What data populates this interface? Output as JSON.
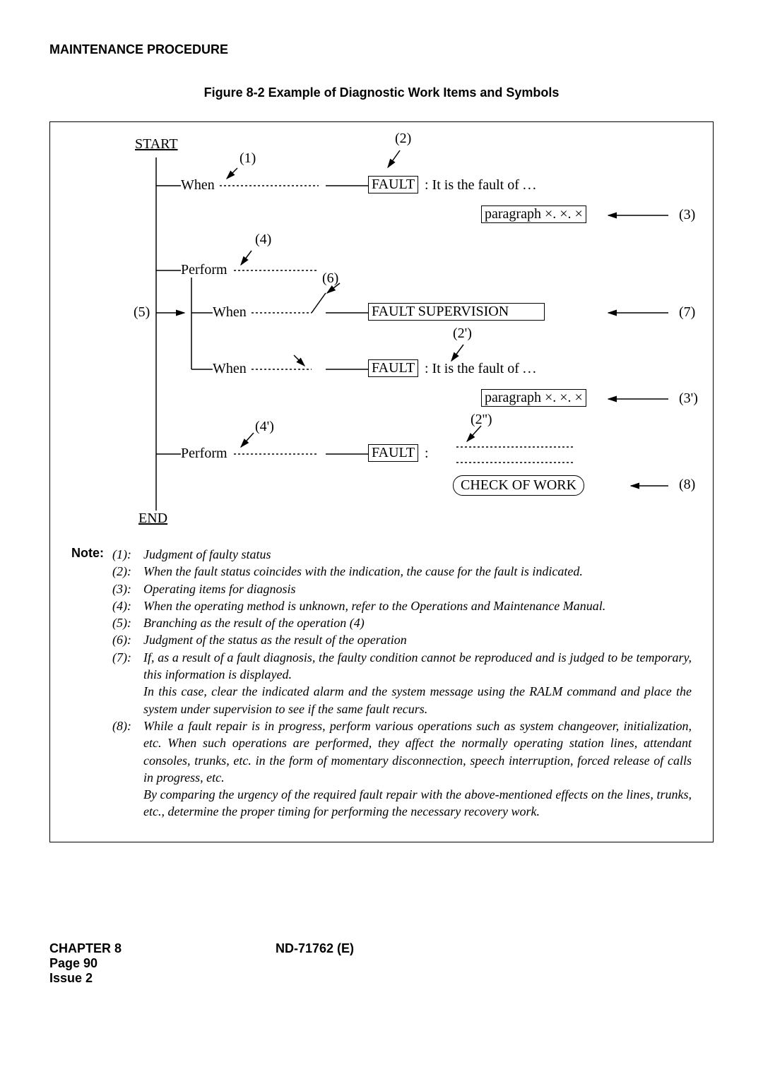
{
  "section_header": "MAINTENANCE PROCEDURE",
  "figure_title": "Figure 8-2   Example of Diagnostic Work Items and Symbols",
  "diagram": {
    "start": "START",
    "end": "END",
    "when": "When",
    "perform": "Perform",
    "fault": "FAULT",
    "fault_supervision": "FAULT SUPERVISION",
    "it_is_fault_of": ": It is the fault of",
    "paragraph": "paragraph ×. ×. ×",
    "check_of_work": "CHECK OF WORK",
    "colon": ":",
    "annot": {
      "a1": "(1)",
      "a2": "(2)",
      "a2p": "(2')",
      "a2pp": "(2'')",
      "a3": "(3)",
      "a3p": "(3')",
      "a4": "(4)",
      "a4p": "(4')",
      "a5": "(5)",
      "a6": "(6)",
      "a7": "(7)",
      "a8": "(8)"
    }
  },
  "note_label": "Note:",
  "notes": [
    {
      "num": "(1):",
      "txt": "Judgment of faulty status"
    },
    {
      "num": "(2):",
      "txt": "When the fault status coincides with the indication, the cause for the fault is indicated."
    },
    {
      "num": "(3):",
      "txt": "Operating items for diagnosis"
    },
    {
      "num": "(4):",
      "txt": "When the operating method is unknown, refer to the Operations and Maintenance Manual."
    },
    {
      "num": "(5):",
      "txt": "Branching as the result of the operation (4)"
    },
    {
      "num": "(6):",
      "txt": "Judgment of the status as the result of the operation"
    },
    {
      "num": "(7):",
      "txt": "If, as a result of a fault diagnosis, the faulty condition cannot be reproduced and is judged to be temporary, this information is displayed.\nIn this case, clear the indicated alarm and the system message using the RALM command and place the system under supervision to see if the same fault recurs."
    },
    {
      "num": "(8):",
      "txt": "While a fault repair is in progress, perform various operations such as system changeover, initialization, etc. When such operations are performed, they affect the normally operating station lines, attendant consoles, trunks, etc. in the form of momentary disconnection, speech interruption, forced release of calls in progress, etc.\nBy comparing the urgency of the required fault repair with the above-mentioned effects on the lines, trunks, etc., determine the proper timing for performing the necessary recovery work."
    }
  ],
  "footer": {
    "chapter": "CHAPTER 8",
    "page": "Page 90",
    "issue": "Issue 2",
    "docnum": "ND-71762 (E)"
  }
}
